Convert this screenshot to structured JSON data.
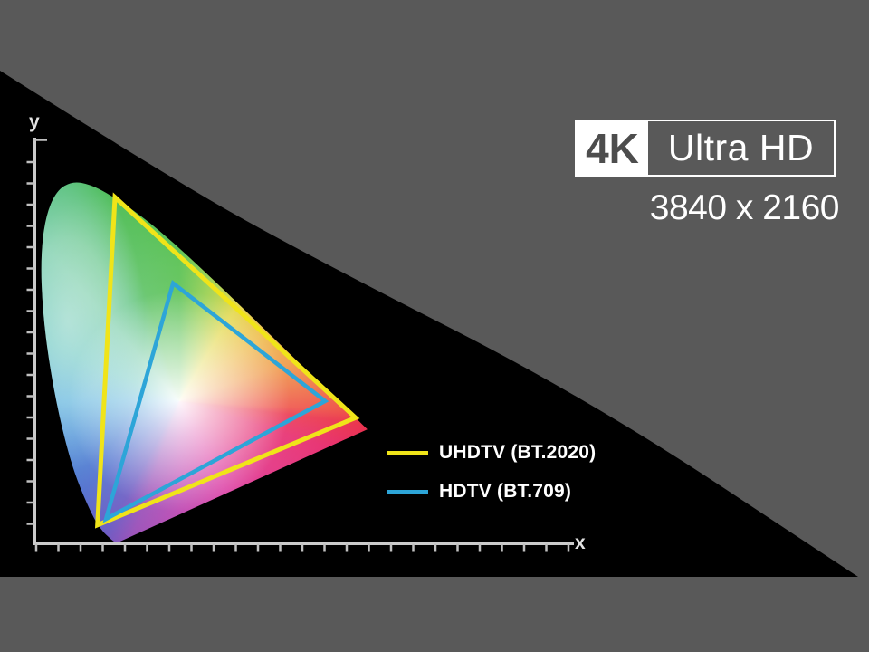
{
  "background": {
    "outer_color": "#595959",
    "inner_color": "#000000"
  },
  "badge": {
    "k_label": "4K",
    "hd_label": "Ultra HD",
    "resolution": "3840 x 2160",
    "border_color": "#ffffff",
    "box_bg": "#ffffff",
    "box_text_color": "#4d4d4d",
    "text_color": "#ffffff"
  },
  "axes": {
    "x_label": "x",
    "y_label": "y",
    "line_color": "#cbcbcb",
    "tick_color": "#c0c0c0"
  },
  "legend": {
    "items": [
      {
        "label": "UHDTV (BT.2020)",
        "color": "#f0e419"
      },
      {
        "label": "HDTV (BT.709)",
        "color": "#2da5d8"
      }
    ]
  },
  "chart_data": {
    "type": "area",
    "title": "CIE 1931 xy chromaticity diagram - UHD vs HD color gamut",
    "xlabel": "x",
    "ylabel": "y",
    "xlim": [
      0,
      1.2
    ],
    "ylim": [
      0,
      0.93
    ],
    "tick_step": 0.05,
    "x_tick_count": 25,
    "y_tick_count": 18,
    "grid": false,
    "legend_position": "right-center",
    "white_point": [
      0.3127,
      0.329
    ],
    "gamuts": [
      {
        "name": "UHDTV (BT.2020)",
        "color": "#f0e419",
        "primaries": {
          "red": [
            0.708,
            0.292
          ],
          "green": [
            0.17,
            0.797
          ],
          "blue": [
            0.131,
            0.046
          ]
        }
      },
      {
        "name": "HDTV (BT.709)",
        "color": "#2da5d8",
        "primaries": {
          "red": [
            0.64,
            0.33
          ],
          "green": [
            0.3,
            0.6
          ],
          "blue": [
            0.15,
            0.06
          ]
        }
      }
    ],
    "spectral_locus": [
      [
        0.1741,
        0.005
      ],
      [
        0.1658,
        0.009
      ],
      [
        0.1566,
        0.018
      ],
      [
        0.144,
        0.0297
      ],
      [
        0.1241,
        0.0578
      ],
      [
        0.0913,
        0.1327
      ],
      [
        0.0687,
        0.2007
      ],
      [
        0.0454,
        0.295
      ],
      [
        0.0235,
        0.4127
      ],
      [
        0.0082,
        0.5384
      ],
      [
        0.0039,
        0.6548
      ],
      [
        0.0139,
        0.7502
      ],
      [
        0.0389,
        0.812
      ],
      [
        0.0743,
        0.8338
      ],
      [
        0.1142,
        0.8262
      ],
      [
        0.1547,
        0.8059
      ],
      [
        0.2296,
        0.7543
      ],
      [
        0.3016,
        0.6923
      ],
      [
        0.3731,
        0.6245
      ],
      [
        0.4441,
        0.5547
      ],
      [
        0.5125,
        0.4866
      ],
      [
        0.5752,
        0.4242
      ],
      [
        0.627,
        0.3725
      ],
      [
        0.6658,
        0.334
      ],
      [
        0.6915,
        0.3083
      ],
      [
        0.714,
        0.2859
      ],
      [
        0.7347,
        0.2653
      ]
    ]
  }
}
